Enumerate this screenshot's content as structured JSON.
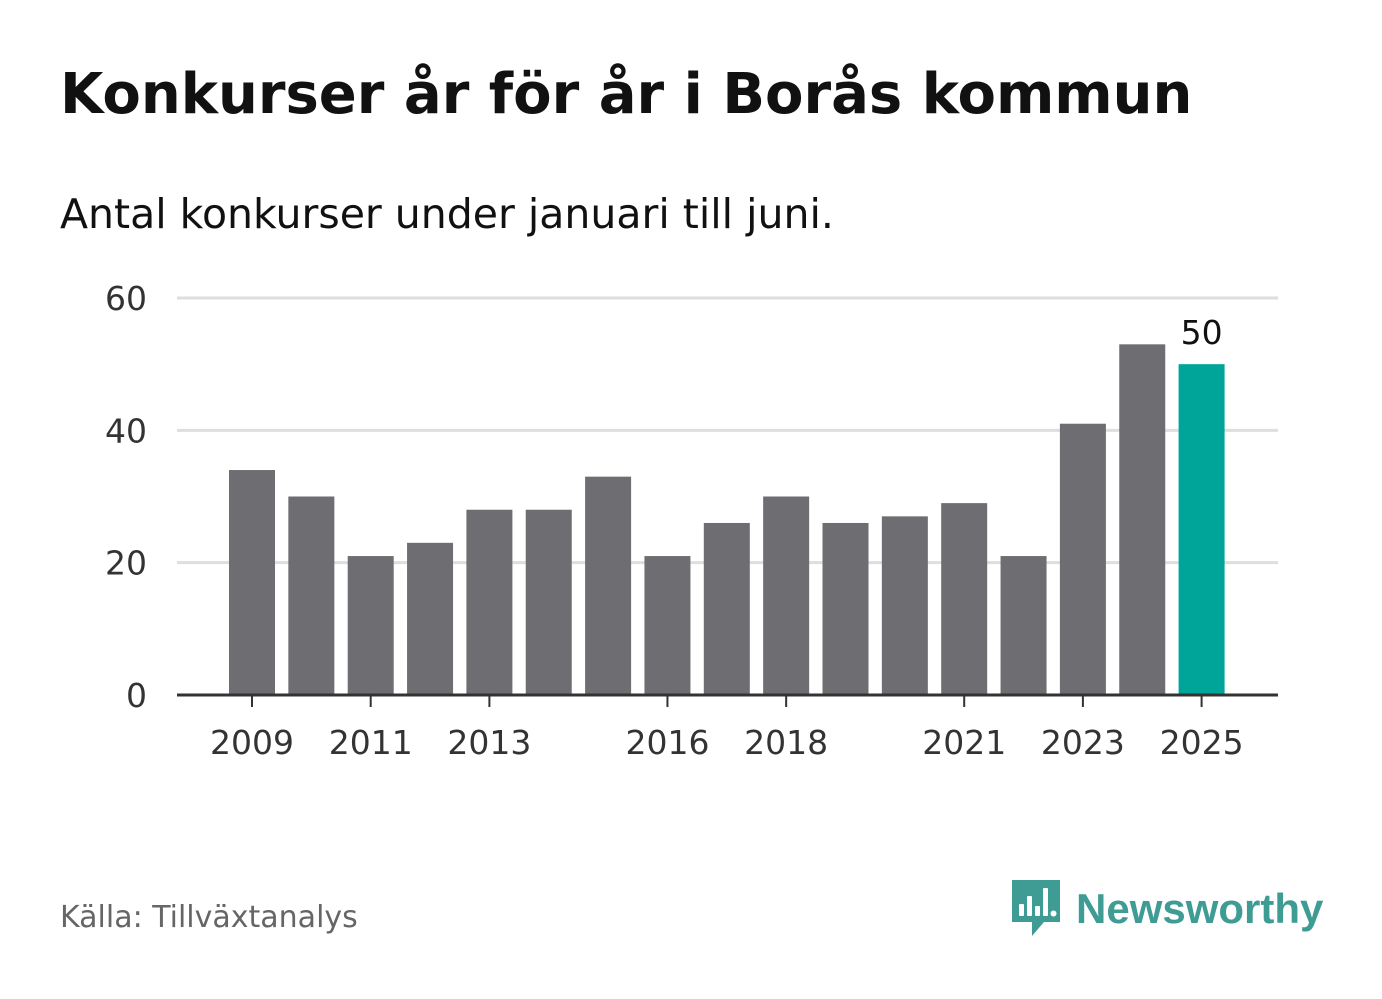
{
  "header": {
    "title": "Konkurser år för år i Borås kommun",
    "subtitle": "Antal konkurser under januari till juni."
  },
  "footer": {
    "source": "Källa: Tillväxtanalys",
    "brand": "Newsworthy",
    "brand_icon": "newsworthy-logo-icon"
  },
  "colors": {
    "bar": "#6e6d72",
    "highlight": "#00a59a",
    "grid": "#dedede",
    "axis": "#333333",
    "text": "#333333",
    "brand": "#3f9c94"
  },
  "chart_data": {
    "type": "bar",
    "title": "Konkurser år för år i Borås kommun",
    "subtitle": "Antal konkurser under januari till juni.",
    "categories": [
      "2009",
      "2010",
      "2011",
      "2012",
      "2013",
      "2014",
      "2015",
      "2016",
      "2017",
      "2018",
      "2019",
      "2020",
      "2021",
      "2022",
      "2023",
      "2024",
      "2025"
    ],
    "values": [
      34,
      30,
      21,
      23,
      28,
      28,
      33,
      21,
      26,
      30,
      26,
      27,
      29,
      21,
      41,
      53,
      50
    ],
    "x_tick_labels": [
      "2009",
      "2011",
      "2013",
      "2016",
      "2018",
      "2021",
      "2023",
      "2025"
    ],
    "y_ticks": [
      0,
      20,
      40,
      60
    ],
    "ylim": [
      0,
      60
    ],
    "grid": true,
    "highlight_category": "2025",
    "data_labels": [
      {
        "category": "2025",
        "text": "50"
      }
    ],
    "xlabel": "",
    "ylabel": ""
  }
}
